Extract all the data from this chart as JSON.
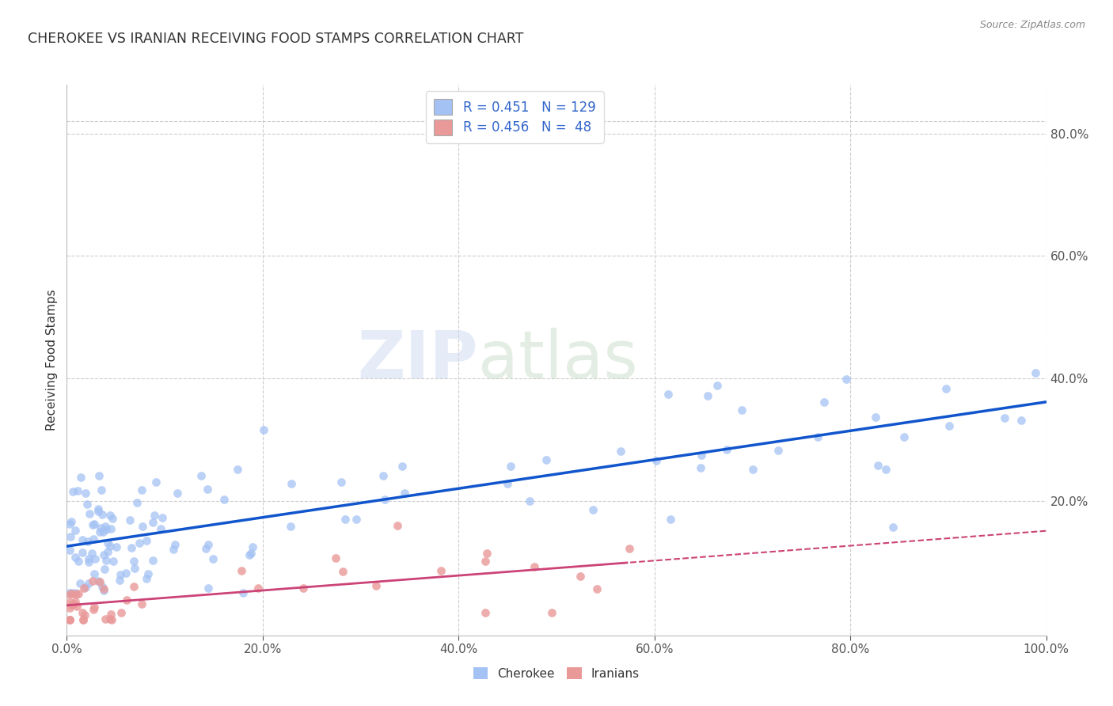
{
  "title": "CHEROKEE VS IRANIAN RECEIVING FOOD STAMPS CORRELATION CHART",
  "source": "Source: ZipAtlas.com",
  "ylabel": "Receiving Food Stamps",
  "xlim": [
    0,
    1.0
  ],
  "ylim": [
    -0.02,
    0.88
  ],
  "xtick_labels": [
    "0.0%",
    "20.0%",
    "40.0%",
    "60.0%",
    "80.0%",
    "100.0%"
  ],
  "xtick_vals": [
    0.0,
    0.2,
    0.4,
    0.6,
    0.8,
    1.0
  ],
  "ytick_labels": [
    "20.0%",
    "40.0%",
    "60.0%",
    "80.0%"
  ],
  "ytick_vals": [
    0.2,
    0.4,
    0.6,
    0.8
  ],
  "cherokee_color": "#a4c2f4",
  "iranian_color": "#ea9999",
  "cherokee_line_color": "#1155cc",
  "iranian_line_color": "#cc4477",
  "legend_R_cherokee": "0.451",
  "legend_N_cherokee": "129",
  "legend_R_iranian": "0.456",
  "legend_N_iranian": "48",
  "watermark_zip": "ZIP",
  "watermark_atlas": "atlas",
  "background_color": "#ffffff",
  "grid_color": "#cccccc",
  "title_color": "#333333",
  "axis_label_color": "#333333",
  "tick_color": "#4488cc",
  "legend_text_color": "#3366cc"
}
